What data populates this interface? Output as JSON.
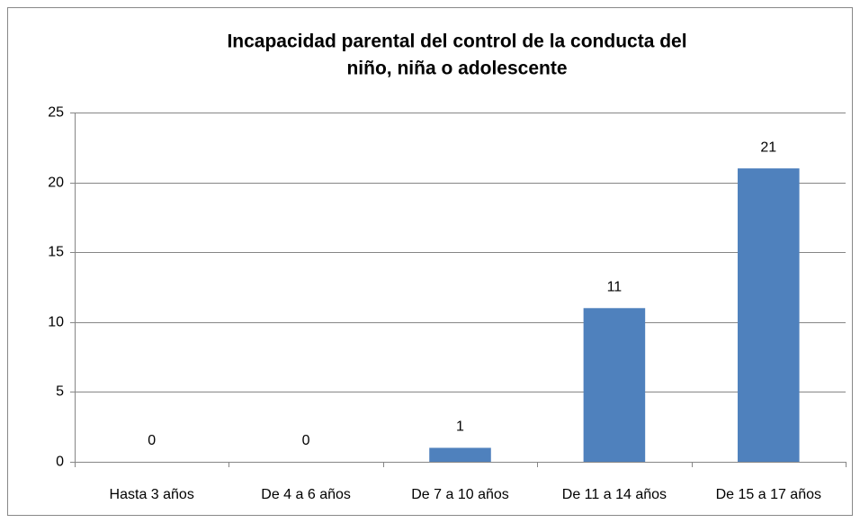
{
  "chart_data": {
    "type": "bar",
    "title": [
      "Incapacidad parental del control de la conducta del",
      "niño, niña o adolescente"
    ],
    "categories": [
      "Hasta 3 años",
      "De 4 a 6 años",
      "De 7 a 10 años",
      "De 11 a 14 años",
      "De 15 a 17 años"
    ],
    "values": [
      0,
      0,
      1,
      11,
      21
    ],
    "color": "#4f81bd",
    "ylim": [
      0,
      25
    ],
    "yticks": [
      0,
      5,
      10,
      15,
      20,
      25
    ],
    "grid": true
  }
}
